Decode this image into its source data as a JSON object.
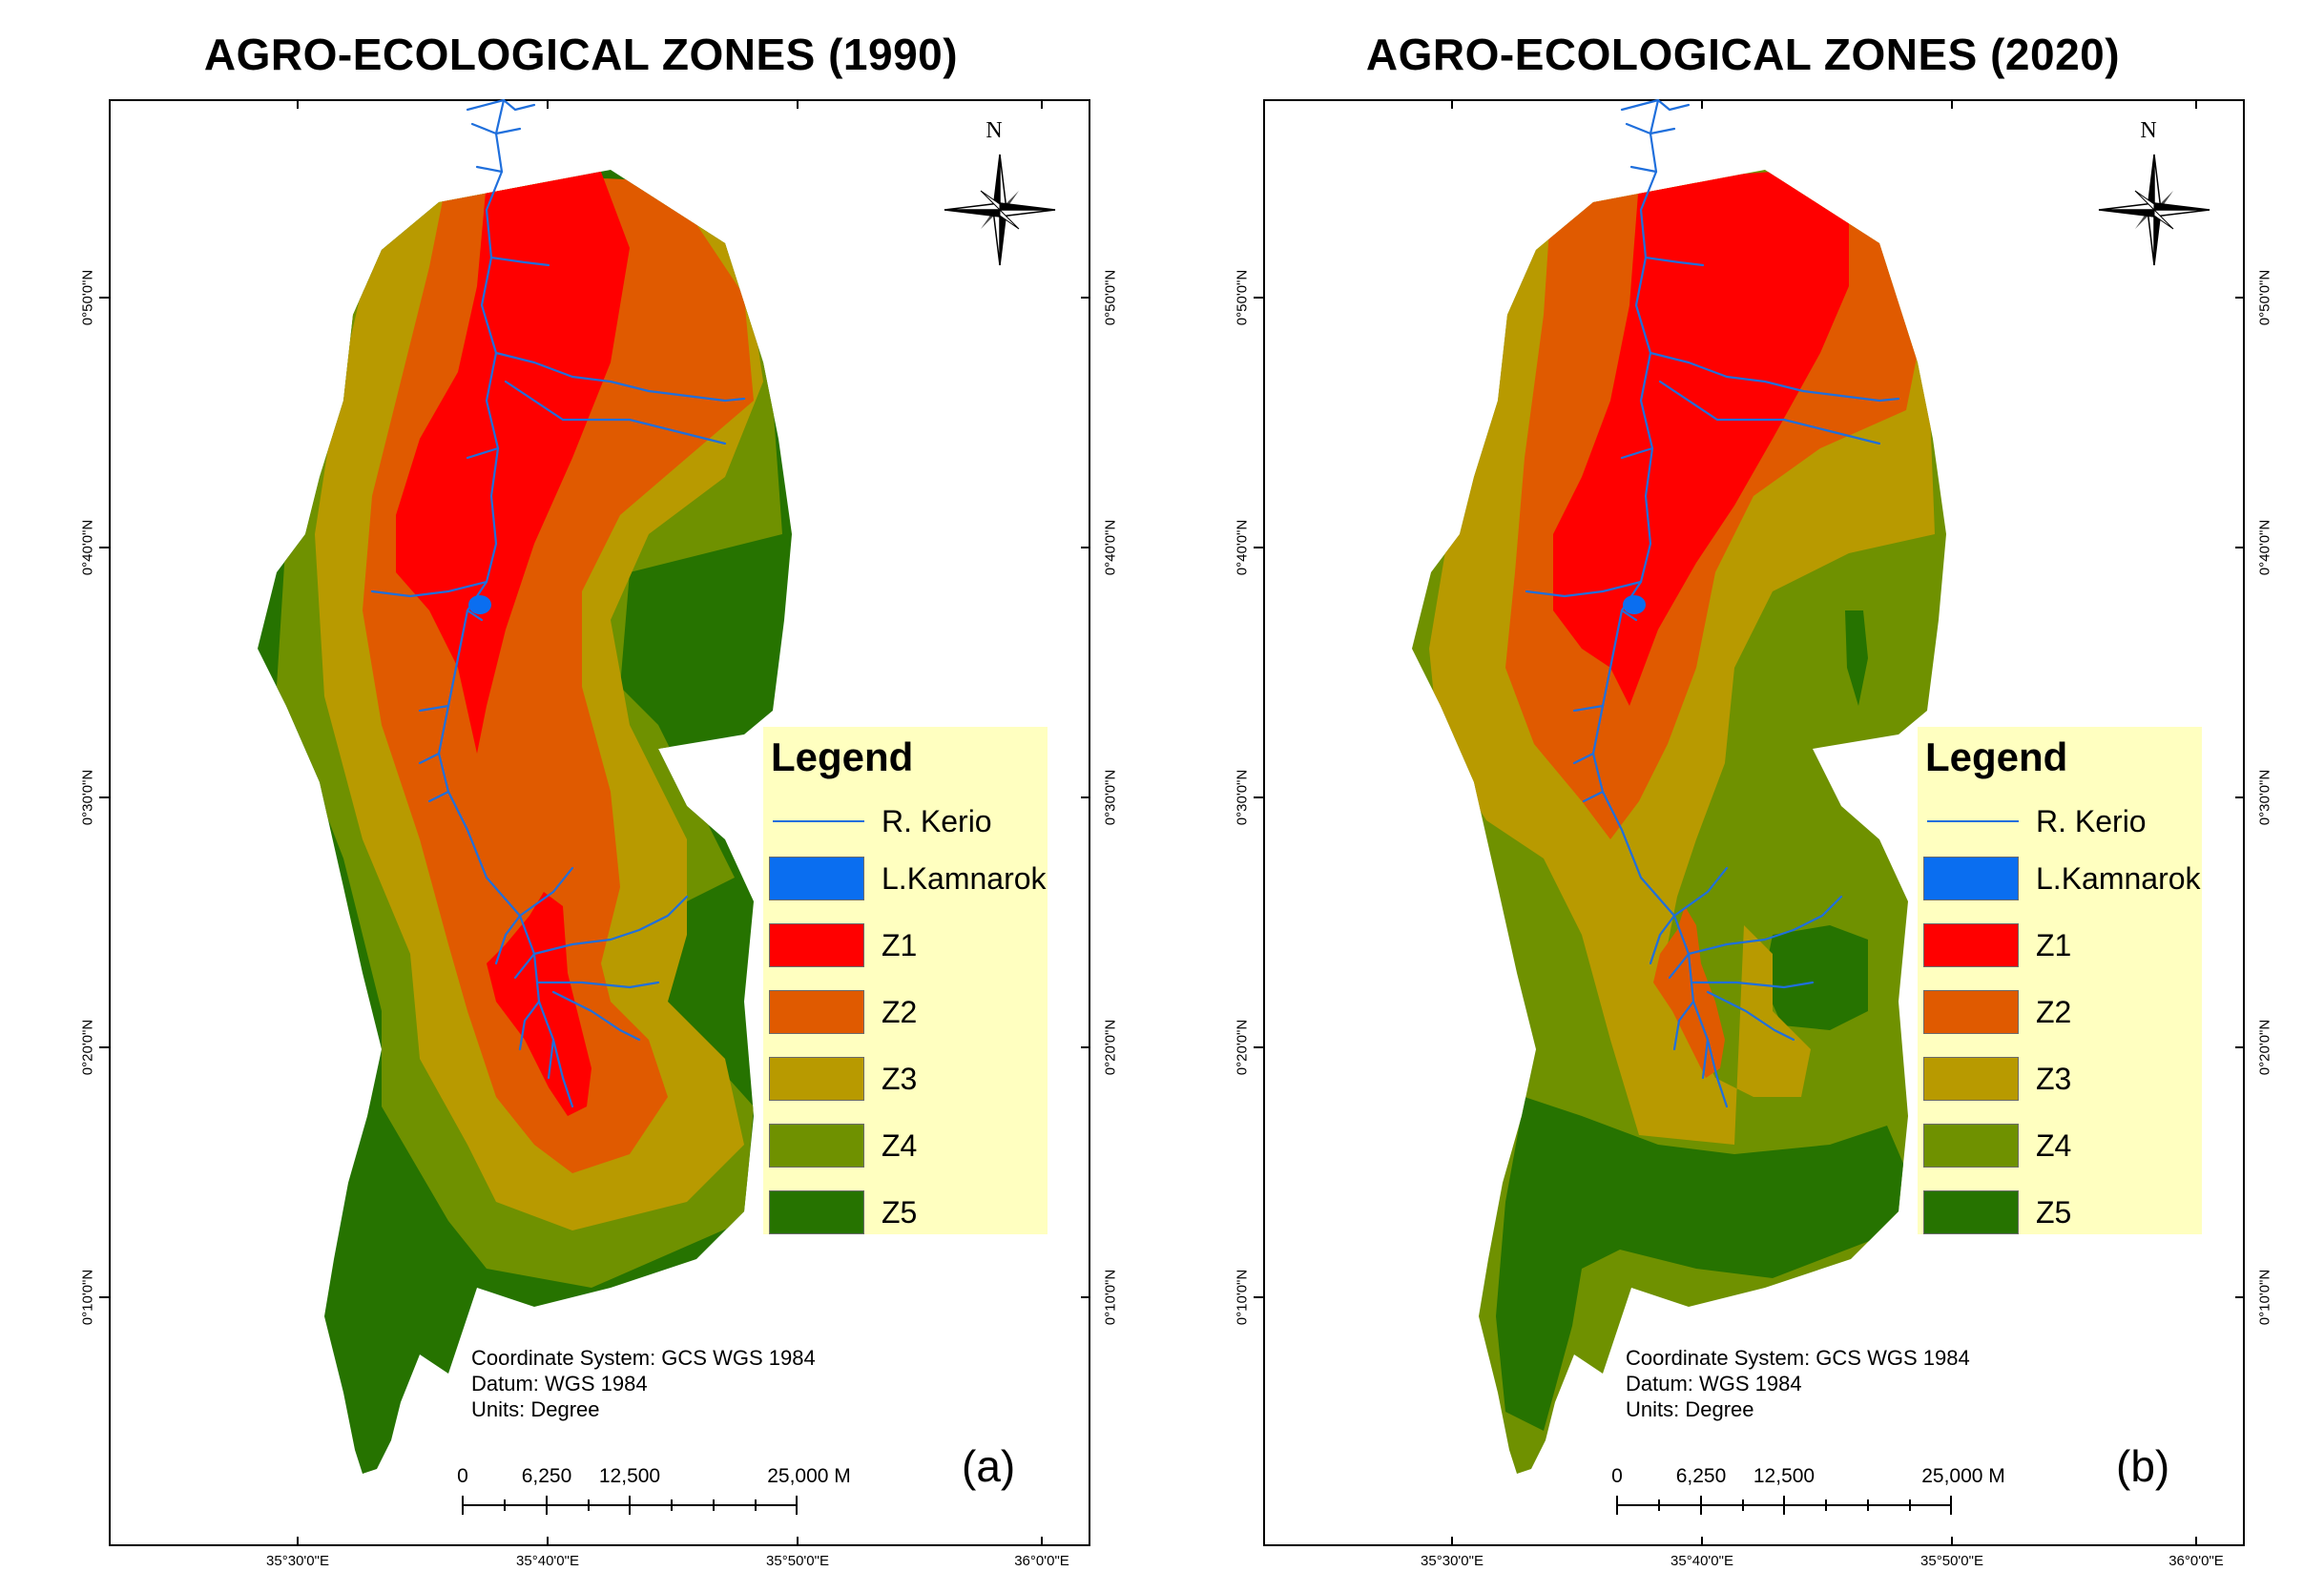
{
  "panels": [
    {
      "title": "AGRO-ECOLOGICAL ZONES (1990)",
      "letter": "(a)",
      "zone_layers_outer_to_inner": [
        "Z5",
        "Z4",
        "Z3",
        "Z2",
        "Z1"
      ]
    },
    {
      "title": "AGRO-ECOLOGICAL ZONES (2020)",
      "letter": "(b)",
      "zone_layers_outer_to_inner": [
        "Z4",
        "Z3",
        "Z2",
        "Z1"
      ]
    }
  ],
  "legend": {
    "title": "Legend",
    "items": [
      {
        "label": "R. Kerio",
        "kind": "line",
        "color": "#1f6fdc"
      },
      {
        "label": "L.Kamnarok",
        "kind": "fill",
        "color": "#0a6ef0"
      },
      {
        "label": "Z1",
        "kind": "fill",
        "color": "#ff0000"
      },
      {
        "label": "Z2",
        "kind": "fill",
        "color": "#e05a00"
      },
      {
        "label": "Z3",
        "kind": "fill",
        "color": "#b89a00"
      },
      {
        "label": "Z4",
        "kind": "fill",
        "color": "#6f9100"
      },
      {
        "label": "Z5",
        "kind": "fill",
        "color": "#267300"
      }
    ]
  },
  "latitude_labels": [
    "0°50'0\"N",
    "0°40'0\"N",
    "0°30'0\"N",
    "0°20'0\"N",
    "0°10'0\"N"
  ],
  "longitude_labels": [
    "35°30'0\"E",
    "35°40'0\"E",
    "35°50'0\"E",
    "36°0'0\"E"
  ],
  "metadata": {
    "coordinate_system": "Coordinate System: GCS WGS 1984",
    "datum": "Datum: WGS 1984",
    "units": "Units: Degree"
  },
  "scale_bar": {
    "labels": [
      "0",
      "6,250",
      "12,500",
      "25,000 M"
    ]
  },
  "north_arrow_label": "N"
}
